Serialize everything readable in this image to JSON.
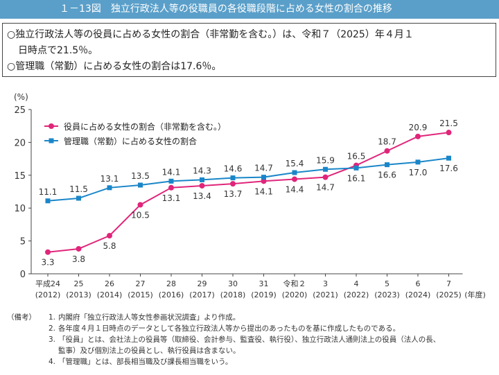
{
  "header": {
    "title": "１－13図　独立行政法人等の役職員の各役職段階に占める女性の割合の推移"
  },
  "summary": {
    "line1": "○独立行政法人等の役員に占める女性の割合（非常勤を含む。）は、令和７（2025）年４月１",
    "line2": "日時点で21.5％。",
    "line3": "○管理職（常勤）に占める女性の割合は17.6％。"
  },
  "chart_data": {
    "type": "line",
    "yunit": "(%)",
    "xlabel": "(年度)",
    "ylim": [
      0,
      25
    ],
    "yticks": [
      "0",
      "5",
      "10",
      "15",
      "20",
      "25"
    ],
    "categories": [
      {
        "era": "平成24",
        "year": "(2012)"
      },
      {
        "era": "25",
        "year": "(2013)"
      },
      {
        "era": "26",
        "year": "(2014)"
      },
      {
        "era": "27",
        "year": "(2015)"
      },
      {
        "era": "28",
        "year": "(2016)"
      },
      {
        "era": "29",
        "year": "(2017)"
      },
      {
        "era": "30",
        "year": "(2018)"
      },
      {
        "era": "31",
        "year": "(2019)"
      },
      {
        "era": "令和２",
        "year": "(2020)"
      },
      {
        "era": "3",
        "year": "(2021)"
      },
      {
        "era": "4",
        "year": "(2022)"
      },
      {
        "era": "5",
        "year": "(2023)"
      },
      {
        "era": "6",
        "year": "(2024)"
      },
      {
        "era": "7",
        "year": "(2025)"
      }
    ],
    "series": [
      {
        "name": "役員に占める女性の割合（非常勤を含む。）",
        "color": "#e0257a",
        "marker": "circle",
        "values": [
          3.3,
          3.8,
          5.8,
          10.5,
          13.1,
          13.4,
          13.7,
          14.1,
          14.4,
          14.7,
          16.5,
          18.7,
          20.9,
          21.5
        ],
        "labels": [
          "3.3",
          "3.8",
          "5.8",
          "10.5",
          "13.1",
          "13.4",
          "13.7",
          "14.1",
          "14.4",
          "14.7",
          "16.5",
          "18.7",
          "20.9",
          "21.5"
        ]
      },
      {
        "name": "管理職（常勤）に占める女性の割合",
        "color": "#1a86c8",
        "marker": "square",
        "values": [
          11.1,
          11.5,
          13.1,
          13.5,
          14.1,
          14.3,
          14.6,
          14.7,
          15.4,
          15.9,
          16.1,
          16.6,
          17.0,
          17.6
        ],
        "labels": [
          "11.1",
          "11.5",
          "13.1",
          "13.5",
          "14.1",
          "14.3",
          "14.6",
          "14.7",
          "15.4",
          "15.9",
          "16.1",
          "16.6",
          "17.0",
          "17.6"
        ]
      }
    ],
    "legend_position": "top-left",
    "grid": false
  },
  "notes": {
    "head": "（備考）",
    "items": [
      {
        "num": "1.",
        "text": "内閣府「独立行政法人等女性参画状況調査」より作成。"
      },
      {
        "num": "2.",
        "text": "各年度４月１日時点のデータとして各独立行政法人等から提出のあったものを基に作成したものである。"
      },
      {
        "num": "3.",
        "text": "「役員」とは、会社法上の役員等（取締役、会計参与、監査役、執行役）、独立行政法人通則法上の役員（法人の長、"
      },
      {
        "num": "",
        "text": "監事）及び個別法上の役員とし、執行役員は含まない。"
      },
      {
        "num": "4.",
        "text": "「管理職」とは、部長相当職及び課長相当職をいう。"
      }
    ]
  }
}
